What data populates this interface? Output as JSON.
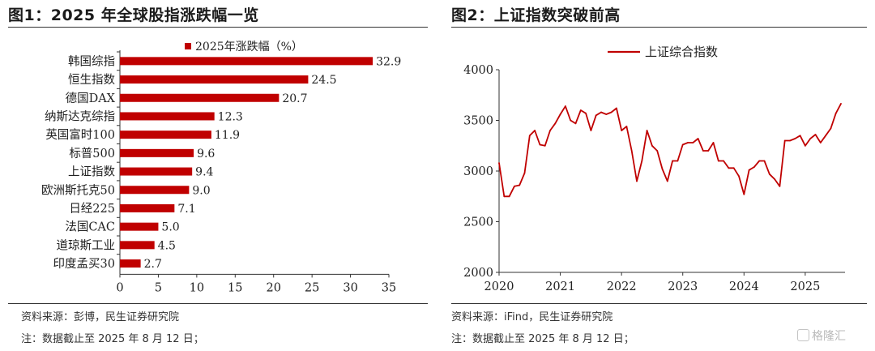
{
  "left_panel": {
    "title": "图1：2025 年全球股指涨跌幅一览",
    "source": "资料来源：彭博，民生证券研究院",
    "note": "注：数据截止至 2025 年 8 月 12 日；"
  },
  "right_panel": {
    "title": "图2：上证指数突破前高",
    "source": "资料来源：iFind，民生证券研究院",
    "note": "注：数据截止至 2025 年 8 月 12 日；"
  },
  "watermark": "格隆汇",
  "colors": {
    "bar": "#c00000",
    "line": "#c00000",
    "axis": "#333333"
  },
  "chart_data": [
    {
      "type": "bar",
      "orientation": "horizontal",
      "categories": [
        "韩国综指",
        "恒生指数",
        "德国DAX",
        "纳斯达克综指",
        "英国富时100",
        "标普500",
        "上证指数",
        "欧洲斯托克50",
        "日经225",
        "法国CAC",
        "道琼斯工业",
        "印度孟买30"
      ],
      "series": [
        {
          "name": "2025年涨跌幅（%）",
          "values": [
            32.9,
            24.5,
            20.7,
            12.3,
            11.9,
            9.6,
            9.4,
            9.0,
            7.1,
            5.0,
            4.5,
            2.7
          ]
        }
      ],
      "data_labels": [
        "32.9",
        "24.5",
        "20.7",
        "12.3",
        "11.9",
        "9.6",
        "9.4",
        "9.0",
        "7.1",
        "5.0",
        "4.5",
        "2.7"
      ],
      "xlim": [
        0,
        35
      ],
      "xticks": [
        "0",
        "5",
        "10",
        "15",
        "20",
        "25",
        "30",
        "35"
      ],
      "legend_position": "top",
      "grid": false
    },
    {
      "type": "line",
      "series": [
        {
          "name": "上证综合指数",
          "x": [
            "2020-01",
            "2020-02",
            "2020-03",
            "2020-04",
            "2020-05",
            "2020-06",
            "2020-07",
            "2020-08",
            "2020-09",
            "2020-10",
            "2020-11",
            "2020-12",
            "2021-01",
            "2021-02",
            "2021-03",
            "2021-04",
            "2021-05",
            "2021-06",
            "2021-07",
            "2021-08",
            "2021-09",
            "2021-10",
            "2021-11",
            "2021-12",
            "2022-01",
            "2022-02",
            "2022-03",
            "2022-04",
            "2022-05",
            "2022-06",
            "2022-07",
            "2022-08",
            "2022-09",
            "2022-10",
            "2022-11",
            "2022-12",
            "2023-01",
            "2023-02",
            "2023-03",
            "2023-04",
            "2023-05",
            "2023-06",
            "2023-07",
            "2023-08",
            "2023-09",
            "2023-10",
            "2023-11",
            "2023-12",
            "2024-01",
            "2024-02",
            "2024-03",
            "2024-04",
            "2024-05",
            "2024-06",
            "2024-07",
            "2024-08",
            "2024-09",
            "2024-10",
            "2024-11",
            "2024-12",
            "2025-01",
            "2025-02",
            "2025-03",
            "2025-04",
            "2025-05",
            "2025-06",
            "2025-07",
            "2025-08"
          ],
          "values": [
            3080,
            2750,
            2750,
            2850,
            2860,
            2980,
            3350,
            3400,
            3260,
            3250,
            3400,
            3470,
            3560,
            3640,
            3500,
            3470,
            3600,
            3570,
            3400,
            3550,
            3580,
            3560,
            3580,
            3620,
            3400,
            3440,
            3200,
            2900,
            3100,
            3400,
            3250,
            3200,
            3020,
            2900,
            3100,
            3100,
            3260,
            3280,
            3280,
            3320,
            3200,
            3200,
            3280,
            3100,
            3100,
            3030,
            3030,
            2950,
            2770,
            3010,
            3040,
            3100,
            3100,
            2970,
            2920,
            2850,
            3300,
            3300,
            3320,
            3350,
            3250,
            3320,
            3360,
            3280,
            3350,
            3420,
            3570,
            3665
          ]
        }
      ],
      "xticks": [
        "2020",
        "2021",
        "2022",
        "2023",
        "2024",
        "2025"
      ],
      "yticks": [
        "2000",
        "2500",
        "3000",
        "3500",
        "4000"
      ],
      "ylim": [
        2000,
        4000
      ],
      "legend_position": "top",
      "grid": false
    }
  ]
}
